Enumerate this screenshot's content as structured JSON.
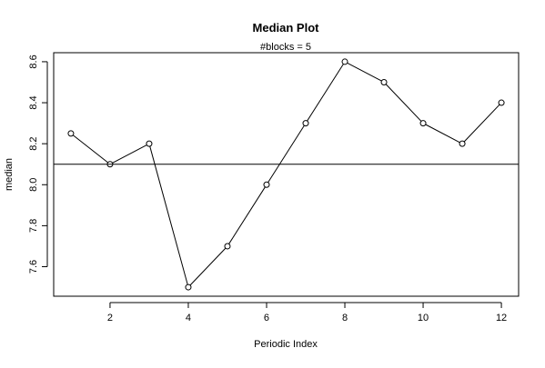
{
  "chart_data": {
    "type": "line",
    "title": "Median Plot",
    "subtitle": "#blocks =  5",
    "xlabel": "Periodic Index",
    "ylabel": "median",
    "x": [
      1,
      2,
      3,
      4,
      5,
      6,
      7,
      8,
      9,
      10,
      11,
      12
    ],
    "series": [
      {
        "values": [
          8.25,
          8.1,
          8.2,
          7.5,
          7.7,
          8.0,
          8.3,
          8.6,
          8.5,
          8.3,
          8.2,
          8.4
        ]
      }
    ],
    "reference_line": {
      "y": 8.1
    },
    "xlim": [
      0.56,
      12.44
    ],
    "ylim": [
      7.456,
      8.644
    ],
    "xticks": [
      2,
      4,
      6,
      8,
      10,
      12
    ],
    "yticks": [
      7.6,
      7.8,
      8.0,
      8.2,
      8.4,
      8.6
    ],
    "ytick_labels": [
      "7.6",
      "7.8",
      "8.0",
      "8.2",
      "8.4",
      "8.6"
    ],
    "grid": false,
    "legend": "none",
    "marker": "open-circle",
    "line_color": "#000000"
  }
}
